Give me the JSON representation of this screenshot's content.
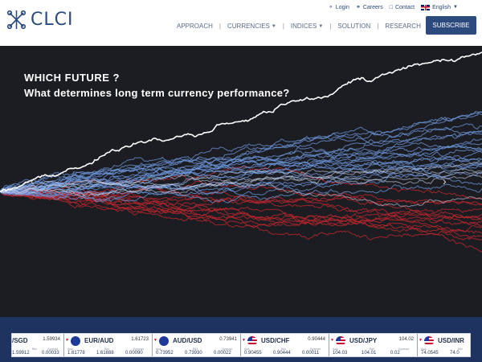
{
  "brand": {
    "name": "CLCI"
  },
  "top_links": {
    "login": "Login",
    "careers": "Careers",
    "contact": "Contact",
    "language": "English"
  },
  "nav": {
    "items": [
      {
        "label": "APPROACH",
        "dropdown": false
      },
      {
        "label": "CURRENCIES",
        "dropdown": true
      },
      {
        "label": "INDICES",
        "dropdown": true
      },
      {
        "label": "SOLUTION",
        "dropdown": false
      },
      {
        "label": "RESEARCH",
        "dropdown": false
      }
    ],
    "subscribe": "SUBSCRIBE"
  },
  "hero": {
    "title": "WHICH FUTURE ?",
    "subtitle": "What determines long term currency performance?"
  },
  "ticker": {
    "items": [
      {
        "pair": "/SGD",
        "rate": "1.59934",
        "ask_label": "",
        "ask": "1.59912",
        "bid_label": "Bid",
        "bid": "",
        "spread_label": "Spread",
        "spread": "0.00033"
      },
      {
        "pair": "EUR/AUD",
        "rate": "1.61723",
        "ask_label": "Ask",
        "ask": "1.61778",
        "bid_label": "Bid",
        "bid": "1.61688",
        "spread_label": "Spread",
        "spread": "0.00090"
      },
      {
        "pair": "AUD/USD",
        "rate": "0.73941",
        "ask_label": "Ask",
        "ask": "0.73952",
        "bid_label": "Bid",
        "bid": "0.73930",
        "spread_label": "Spread",
        "spread": "0.00022"
      },
      {
        "pair": "USD/CHF",
        "rate": "0.90444",
        "ask_label": "Ask",
        "ask": "0.90455",
        "bid_label": "Bid",
        "bid": "0.90444",
        "spread_label": "Spread",
        "spread": "0.00011"
      },
      {
        "pair": "USD/JPY",
        "rate": "104.02",
        "ask_label": "Ask",
        "ask": "104.03",
        "bid_label": "Bid",
        "bid": "104.01",
        "spread_label": "Spread",
        "spread": "0.02"
      },
      {
        "pair": "USD/INR",
        "rate": "",
        "ask_label": "Ask",
        "ask": "74.0545",
        "bid_label": "Bid",
        "bid": "74.0",
        "spread_label": "",
        "spread": ""
      }
    ]
  },
  "colors": {
    "brand": "#2b4a7e",
    "subscribe_bg": "#2d4a7e",
    "hero_bg": "#1c1d22",
    "ticker_bg": "#1f3360",
    "path_red": "#c0272d",
    "path_blue": "#6f9ae0",
    "path_white": "#ffffff"
  }
}
